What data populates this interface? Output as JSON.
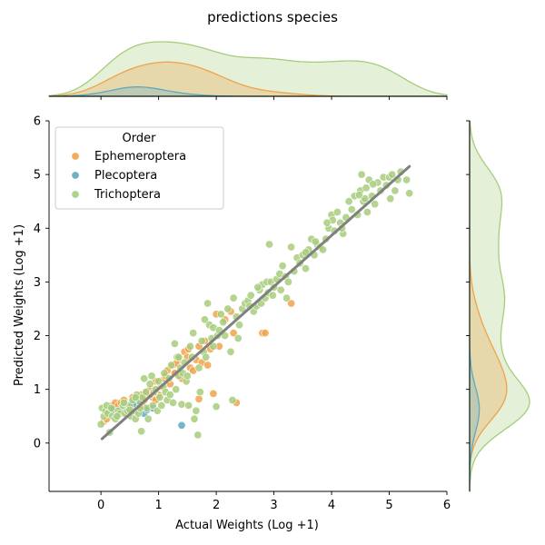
{
  "chart_data": {
    "type": "scatter",
    "title": "predictions species",
    "xlabel": "Actual Weights (Log +1)",
    "ylabel": "Predicted Weights (Log +1)",
    "xlim": [
      -0.9,
      6.0
    ],
    "ylim": [
      -0.9,
      6.0
    ],
    "xticks": [
      0,
      1,
      2,
      3,
      4,
      5,
      6
    ],
    "yticks": [
      0,
      1,
      2,
      3,
      4,
      5,
      6
    ],
    "grid": false,
    "legend": {
      "title": "Order",
      "placement": "top-left",
      "entries": [
        "Ephemeroptera",
        "Plecoptera",
        "Trichoptera"
      ]
    },
    "regression_line": {
      "x": [
        0.02,
        5.35
      ],
      "y": [
        0.08,
        5.15
      ],
      "color": "#808080"
    },
    "marginals": "kde",
    "series": [
      {
        "name": "Ephemeroptera",
        "color": "#f0a34a",
        "points": [
          [
            0.05,
            0.4
          ],
          [
            0.1,
            0.45
          ],
          [
            0.15,
            0.6
          ],
          [
            0.2,
            0.7
          ],
          [
            0.25,
            0.75
          ],
          [
            0.3,
            0.7
          ],
          [
            0.35,
            0.75
          ],
          [
            0.4,
            0.8
          ],
          [
            0.45,
            0.55
          ],
          [
            0.5,
            0.65
          ],
          [
            0.55,
            0.85
          ],
          [
            0.6,
            0.6
          ],
          [
            0.65,
            0.75
          ],
          [
            0.7,
            0.9
          ],
          [
            0.75,
            0.8
          ],
          [
            0.8,
            0.95
          ],
          [
            0.85,
            1.0
          ],
          [
            0.9,
            0.85
          ],
          [
            0.95,
            0.8
          ],
          [
            1.0,
            0.9
          ],
          [
            1.05,
            1.05
          ],
          [
            1.1,
            1.2
          ],
          [
            1.15,
            1.35
          ],
          [
            1.2,
            1.1
          ],
          [
            1.25,
            1.45
          ],
          [
            1.3,
            1.3
          ],
          [
            1.35,
            1.55
          ],
          [
            1.4,
            1.2
          ],
          [
            1.45,
            1.7
          ],
          [
            1.5,
            1.6
          ],
          [
            1.55,
            1.4
          ],
          [
            1.6,
            1.35
          ],
          [
            1.65,
            1.55
          ],
          [
            1.7,
            1.8
          ],
          [
            1.75,
            1.5
          ],
          [
            1.8,
            1.9
          ],
          [
            1.85,
            1.45
          ],
          [
            1.9,
            1.75
          ],
          [
            2.0,
            2.4
          ],
          [
            2.05,
            1.8
          ],
          [
            2.15,
            2.3
          ],
          [
            2.25,
            2.45
          ],
          [
            2.3,
            2.05
          ],
          [
            2.35,
            0.75
          ],
          [
            2.8,
            2.05
          ],
          [
            2.85,
            2.05
          ],
          [
            3.3,
            2.6
          ],
          [
            1.7,
            0.82
          ],
          [
            1.95,
            0.92
          ],
          [
            1.28,
            1.3
          ],
          [
            0.95,
            1.15
          ],
          [
            1.3,
            1.48
          ],
          [
            1.12,
            1.25
          ],
          [
            0.85,
            0.9
          ],
          [
            0.72,
            0.7
          ],
          [
            1.52,
            1.75
          ]
        ]
      },
      {
        "name": "Plecoptera",
        "color": "#5fa9c0",
        "points": [
          [
            0.2,
            0.62
          ],
          [
            0.35,
            0.6
          ],
          [
            0.6,
            0.7
          ],
          [
            0.65,
            0.78
          ],
          [
            0.75,
            0.55
          ],
          [
            0.8,
            0.62
          ],
          [
            0.9,
            0.65
          ],
          [
            1.4,
            0.33
          ],
          [
            0.55,
            0.72
          ]
        ]
      },
      {
        "name": "Trichoptera",
        "color": "#a7cd7c",
        "points": [
          [
            0.0,
            0.35
          ],
          [
            0.02,
            0.65
          ],
          [
            0.05,
            0.5
          ],
          [
            0.08,
            0.6
          ],
          [
            0.1,
            0.7
          ],
          [
            0.12,
            0.55
          ],
          [
            0.15,
            0.2
          ],
          [
            0.18,
            0.65
          ],
          [
            0.2,
            0.5
          ],
          [
            0.25,
            0.45
          ],
          [
            0.3,
            0.6
          ],
          [
            0.33,
            0.55
          ],
          [
            0.38,
            0.7
          ],
          [
            0.42,
            0.55
          ],
          [
            0.46,
            0.6
          ],
          [
            0.5,
            0.7
          ],
          [
            0.52,
            0.5
          ],
          [
            0.55,
            0.8
          ],
          [
            0.58,
            0.6
          ],
          [
            0.6,
            0.45
          ],
          [
            0.62,
            0.9
          ],
          [
            0.65,
            0.55
          ],
          [
            0.68,
            0.75
          ],
          [
            0.7,
            0.22
          ],
          [
            0.72,
            0.85
          ],
          [
            0.75,
            1.2
          ],
          [
            0.78,
            0.95
          ],
          [
            0.8,
            0.65
          ],
          [
            0.82,
            0.45
          ],
          [
            0.85,
            1.1
          ],
          [
            0.88,
            1.25
          ],
          [
            0.9,
            0.7
          ],
          [
            0.92,
            0.95
          ],
          [
            0.95,
            1.0
          ],
          [
            0.98,
            0.6
          ],
          [
            1.0,
            1.15
          ],
          [
            1.02,
            0.85
          ],
          [
            1.05,
            0.7
          ],
          [
            1.08,
            1.05
          ],
          [
            1.1,
            1.3
          ],
          [
            1.12,
            0.95
          ],
          [
            1.15,
            0.8
          ],
          [
            1.18,
            1.2
          ],
          [
            1.2,
            0.9
          ],
          [
            1.22,
            1.45
          ],
          [
            1.25,
            0.75
          ],
          [
            1.28,
            1.85
          ],
          [
            1.3,
            1.0
          ],
          [
            1.32,
            1.6
          ],
          [
            1.35,
            1.25
          ],
          [
            1.38,
            1.4
          ],
          [
            1.4,
            0.72
          ],
          [
            1.42,
            1.3
          ],
          [
            1.45,
            1.5
          ],
          [
            1.48,
            1.15
          ],
          [
            1.5,
            1.25
          ],
          [
            1.52,
            0.7
          ],
          [
            1.55,
            1.8
          ],
          [
            1.58,
            1.6
          ],
          [
            1.62,
            0.45
          ],
          [
            1.65,
            0.6
          ],
          [
            1.68,
            0.15
          ],
          [
            1.7,
            1.4
          ],
          [
            1.72,
            0.95
          ],
          [
            1.75,
            1.9
          ],
          [
            1.78,
            1.7
          ],
          [
            1.8,
            2.3
          ],
          [
            1.82,
            1.6
          ],
          [
            1.85,
            2.6
          ],
          [
            1.88,
            2.2
          ],
          [
            1.92,
            1.95
          ],
          [
            1.95,
            2.15
          ],
          [
            2.0,
            0.68
          ],
          [
            2.02,
            2.0
          ],
          [
            2.05,
            2.1
          ],
          [
            2.08,
            2.4
          ],
          [
            2.12,
            2.25
          ],
          [
            2.15,
            2.0
          ],
          [
            2.2,
            2.5
          ],
          [
            2.25,
            1.7
          ],
          [
            2.28,
            0.8
          ],
          [
            2.3,
            2.7
          ],
          [
            2.35,
            2.35
          ],
          [
            2.38,
            1.95
          ],
          [
            2.4,
            2.2
          ],
          [
            2.45,
            2.5
          ],
          [
            2.5,
            2.6
          ],
          [
            2.55,
            2.65
          ],
          [
            2.6,
            2.75
          ],
          [
            2.65,
            2.45
          ],
          [
            2.7,
            2.55
          ],
          [
            2.75,
            2.85
          ],
          [
            2.78,
            2.6
          ],
          [
            2.8,
            2.95
          ],
          [
            2.85,
            2.7
          ],
          [
            2.88,
            3.0
          ],
          [
            2.9,
            2.8
          ],
          [
            2.92,
            3.7
          ],
          [
            2.95,
            3.0
          ],
          [
            2.98,
            2.75
          ],
          [
            3.0,
            2.9
          ],
          [
            3.05,
            3.05
          ],
          [
            3.1,
            3.15
          ],
          [
            3.12,
            2.85
          ],
          [
            3.15,
            3.3
          ],
          [
            3.2,
            3.1
          ],
          [
            3.22,
            2.7
          ],
          [
            3.25,
            3.0
          ],
          [
            3.3,
            3.65
          ],
          [
            3.35,
            3.2
          ],
          [
            3.4,
            3.45
          ],
          [
            3.45,
            3.35
          ],
          [
            3.5,
            3.5
          ],
          [
            3.55,
            3.25
          ],
          [
            3.6,
            3.6
          ],
          [
            3.65,
            3.8
          ],
          [
            3.7,
            3.5
          ],
          [
            3.75,
            3.7
          ],
          [
            3.8,
            3.65
          ],
          [
            3.85,
            3.6
          ],
          [
            3.9,
            3.8
          ],
          [
            3.95,
            4.0
          ],
          [
            4.0,
            4.25
          ],
          [
            4.02,
            4.15
          ],
          [
            4.05,
            3.95
          ],
          [
            4.1,
            4.3
          ],
          [
            4.15,
            4.1
          ],
          [
            4.2,
            3.9
          ],
          [
            4.25,
            4.2
          ],
          [
            4.3,
            4.5
          ],
          [
            4.35,
            4.35
          ],
          [
            4.4,
            4.6
          ],
          [
            4.45,
            4.25
          ],
          [
            4.5,
            4.7
          ],
          [
            4.52,
            5.0
          ],
          [
            4.55,
            4.5
          ],
          [
            4.6,
            4.75
          ],
          [
            4.62,
            4.3
          ],
          [
            4.65,
            4.9
          ],
          [
            4.7,
            4.6
          ],
          [
            4.75,
            4.45
          ],
          [
            4.8,
            4.85
          ],
          [
            4.85,
            4.7
          ],
          [
            4.9,
            4.95
          ],
          [
            4.95,
            4.8
          ],
          [
            5.0,
            4.95
          ],
          [
            5.02,
            4.55
          ],
          [
            5.05,
            5.0
          ],
          [
            5.1,
            4.7
          ],
          [
            5.15,
            4.9
          ],
          [
            5.2,
            5.05
          ],
          [
            5.3,
            4.9
          ],
          [
            5.35,
            4.65
          ],
          [
            4.18,
            4.0
          ],
          [
            3.92,
            4.1
          ],
          [
            4.58,
            4.55
          ],
          [
            4.72,
            4.82
          ],
          [
            4.48,
            4.62
          ],
          [
            2.72,
            2.9
          ],
          [
            2.58,
            2.55
          ],
          [
            3.55,
            3.55
          ],
          [
            0.5,
            0.62
          ],
          [
            0.4,
            0.75
          ],
          [
            0.28,
            0.5
          ],
          [
            0.6,
            0.85
          ],
          [
            1.35,
            1.6
          ],
          [
            1.6,
            2.05
          ],
          [
            1.95,
            1.8
          ],
          [
            0.68,
            0.65
          ],
          [
            3.72,
            3.75
          ]
        ]
      }
    ]
  }
}
